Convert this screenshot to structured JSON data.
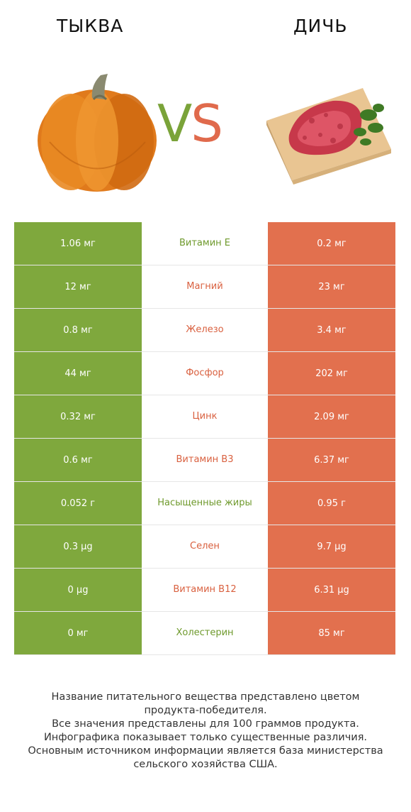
{
  "header": {
    "left_title": "ТЫКВА",
    "right_title": "ДИЧЬ",
    "vs_v": "V",
    "vs_s": "S"
  },
  "colors": {
    "winner_left": "#7fa83d",
    "winner_right": "#e2704e"
  },
  "rows": [
    {
      "left": "1.06 мг",
      "name": "Витамин E",
      "right": "0.2 мг",
      "winner": "left"
    },
    {
      "left": "12 мг",
      "name": "Магний",
      "right": "23 мг",
      "winner": "right"
    },
    {
      "left": "0.8 мг",
      "name": "Железо",
      "right": "3.4 мг",
      "winner": "right"
    },
    {
      "left": "44 мг",
      "name": "Фосфор",
      "right": "202 мг",
      "winner": "right"
    },
    {
      "left": "0.32 мг",
      "name": "Цинк",
      "right": "2.09 мг",
      "winner": "right"
    },
    {
      "left": "0.6 мг",
      "name": "Витамин B3",
      "right": "6.37 мг",
      "winner": "right"
    },
    {
      "left": "0.052 г",
      "name": "Насыщенные жиры",
      "right": "0.95 г",
      "winner": "left"
    },
    {
      "left": "0.3 µg",
      "name": "Селен",
      "right": "9.7 µg",
      "winner": "right"
    },
    {
      "left": "0 µg",
      "name": "Витамин B12",
      "right": "6.31 µg",
      "winner": "right"
    },
    {
      "left": "0 мг",
      "name": "Холестерин",
      "right": "85 мг",
      "winner": "left"
    }
  ],
  "footer": {
    "line1": "Название питательного вещества представлено цветом",
    "line2": "продукта-победителя.",
    "line3": "Все значения представлены для 100 граммов продукта.",
    "line4": "Инфографика показывает только существенные различия.",
    "line5": "Основным источником информации является база министерства",
    "line6": "сельского хозяйства США."
  }
}
